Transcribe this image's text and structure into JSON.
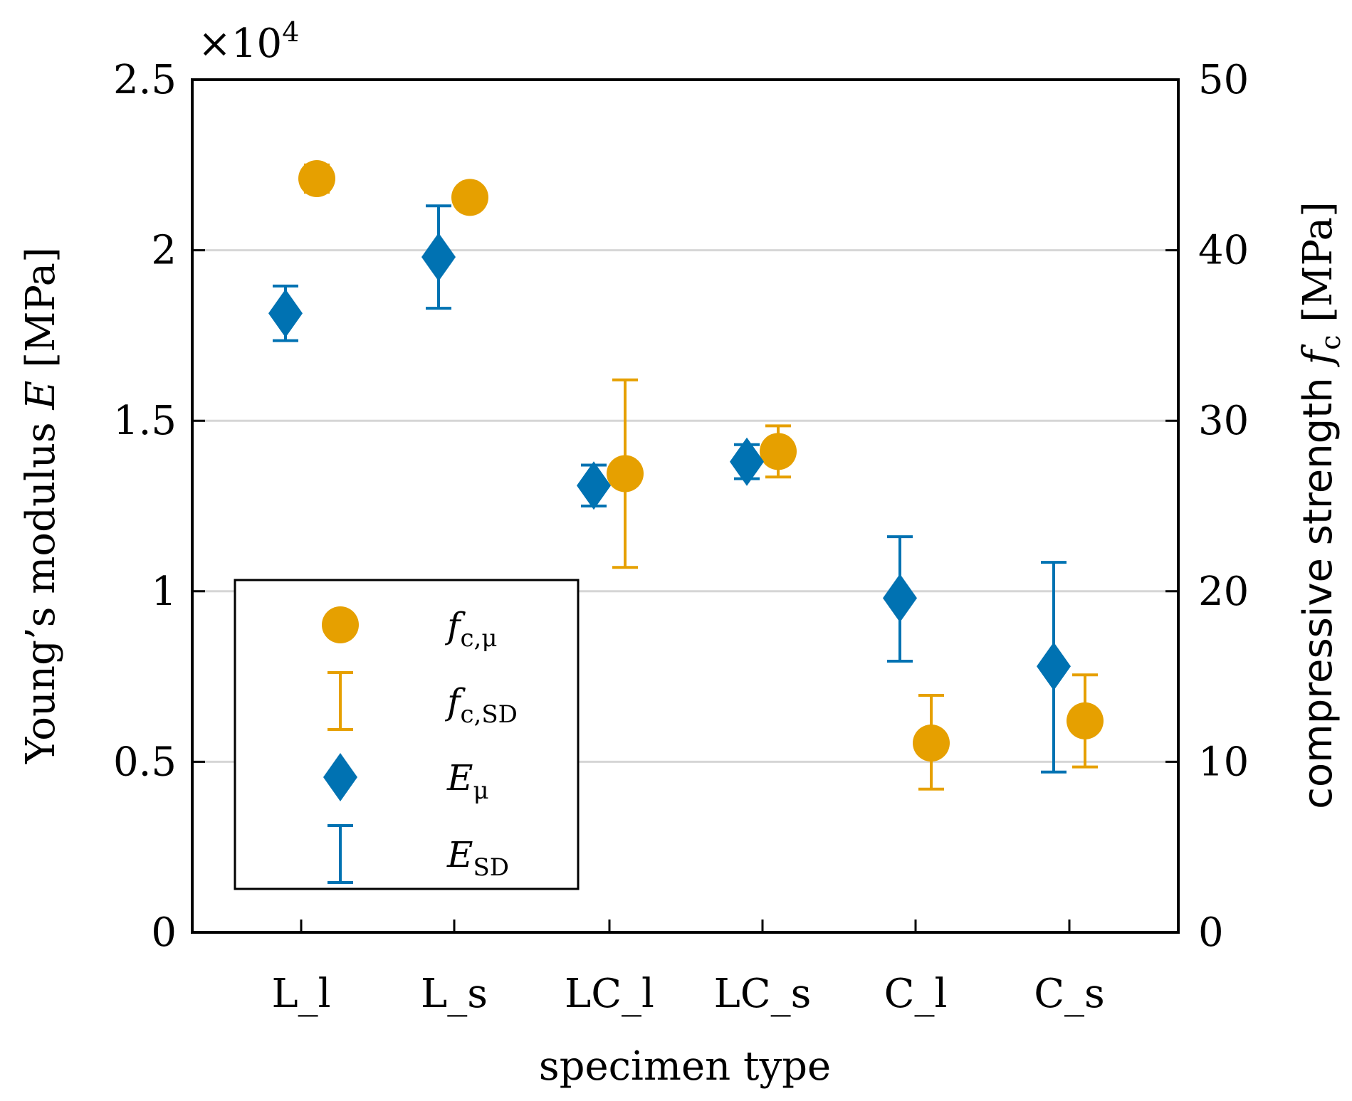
{
  "chart_data": {
    "type": "scatter",
    "title": "",
    "xlabel": "specimen type",
    "ylabel_left": "Young's modulus E [MPa]",
    "ylabel_right": "compressive strength f_c [MPa]",
    "exponent_label": "×10^4",
    "categories": [
      "L_l",
      "L_s",
      "LC_l",
      "LC_s",
      "C_l",
      "C_s"
    ],
    "y_left": {
      "range": [
        0,
        25000
      ],
      "ticks": [
        0,
        5000,
        10000,
        15000,
        20000,
        25000
      ],
      "tick_labels": [
        "0",
        "0.5",
        "1",
        "1.5",
        "2",
        "2.5"
      ]
    },
    "y_right": {
      "range": [
        0,
        50
      ],
      "ticks": [
        0,
        10,
        20,
        30,
        40,
        50
      ],
      "tick_labels": [
        "0",
        "10",
        "20",
        "30",
        "40",
        "50"
      ]
    },
    "grid": "horizontal",
    "legend_position": "bottom-left",
    "series": [
      {
        "name": "f_c,μ / f_c,SD",
        "axis": "right",
        "marker": "circle",
        "color": "#e6a000",
        "mean": [
          44.2,
          43.1,
          26.9,
          28.2,
          11.1,
          12.4
        ],
        "sd_low": [
          43.4,
          43.1,
          21.4,
          26.7,
          8.4,
          9.7
        ],
        "sd_high": [
          45.0,
          43.1,
          32.4,
          29.7,
          13.9,
          15.1
        ]
      },
      {
        "name": "E_μ / E_SD",
        "axis": "left",
        "marker": "diamond",
        "color": "#0072b2",
        "mean": [
          18150,
          19800,
          13100,
          13800,
          9800,
          7800
        ],
        "sd_low": [
          17350,
          18300,
          12500,
          13300,
          7950,
          4700
        ],
        "sd_high": [
          18950,
          21300,
          13700,
          14300,
          11600,
          10850
        ]
      }
    ],
    "legend": [
      {
        "key": "fc_mu",
        "main": "f",
        "sub": "c,μ",
        "symbol": "circle",
        "color": "#e6a000"
      },
      {
        "key": "fc_sd",
        "main": "f",
        "sub": "c,SD",
        "symbol": "errorbar",
        "color": "#e6a000"
      },
      {
        "key": "e_mu",
        "main": "E",
        "sub": "μ",
        "symbol": "diamond",
        "color": "#0072b2"
      },
      {
        "key": "e_sd",
        "main": "E",
        "sub": "SD",
        "symbol": "errorbar",
        "color": "#0072b2"
      }
    ]
  }
}
